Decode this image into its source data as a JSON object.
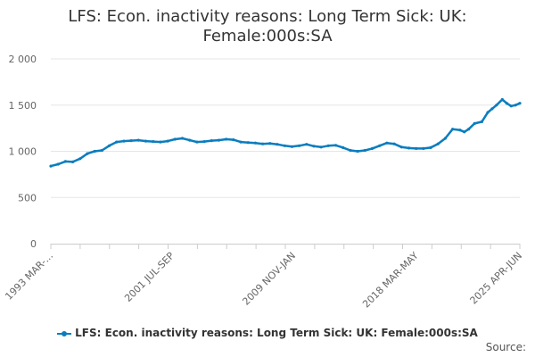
{
  "chart_data": {
    "type": "line",
    "title_lines": [
      "LFS: Econ. inactivity reasons: Long Term Sick: UK:",
      "Female:000s:SA"
    ],
    "xlabel": "",
    "ylabel": "",
    "ylim": [
      0,
      2000
    ],
    "yticks": [
      0,
      500,
      1000,
      1500,
      2000
    ],
    "ytick_labels": [
      "0",
      "500",
      "1 000",
      "1 500",
      "2 000"
    ],
    "x_labels": [
      "1993 MAR-MAY",
      "2001 JUL-SEP",
      "2009 NOV-JAN",
      "2018 MAR-MAY",
      "2025 APR-JUN"
    ],
    "x_labels_display": [
      "1993 MAR-...",
      "2001 JUL-SEP",
      "2009 NOV-JAN",
      "2018 MAR-MAY",
      "2025 APR-JUN"
    ],
    "x_label_years": [
      1993.3,
      2001.6,
      2009.9,
      2018.3,
      2025.4
    ],
    "xlim": [
      1993.3,
      2025.4
    ],
    "grid": "horizontal",
    "color": "#0a7dbf",
    "series": [
      {
        "name": "LFS: Econ. inactivity reasons: Long Term Sick: UK: Female:000s:SA",
        "x": [
          1993.3,
          1993.8,
          1994.3,
          1994.8,
          1995.3,
          1995.8,
          1996.3,
          1996.8,
          1997.3,
          1997.8,
          1998.3,
          1998.8,
          1999.3,
          1999.8,
          2000.3,
          2000.8,
          2001.3,
          2001.8,
          2002.3,
          2002.8,
          2003.3,
          2003.8,
          2004.3,
          2004.8,
          2005.3,
          2005.8,
          2006.3,
          2006.8,
          2007.3,
          2007.8,
          2008.3,
          2008.8,
          2009.3,
          2009.8,
          2010.3,
          2010.8,
          2011.3,
          2011.8,
          2012.3,
          2012.8,
          2013.3,
          2013.8,
          2014.3,
          2014.8,
          2015.3,
          2015.8,
          2016.3,
          2016.8,
          2017.3,
          2017.8,
          2018.3,
          2018.8,
          2019.3,
          2019.8,
          2020.3,
          2020.8,
          2021.3,
          2021.6,
          2021.9,
          2022.3,
          2022.8,
          2023.2,
          2023.5,
          2023.8,
          2024.2,
          2024.5,
          2024.8,
          2025.1,
          2025.4
        ],
        "values": [
          840,
          860,
          890,
          885,
          920,
          975,
          1000,
          1010,
          1060,
          1100,
          1110,
          1115,
          1120,
          1110,
          1105,
          1100,
          1110,
          1130,
          1140,
          1120,
          1100,
          1105,
          1115,
          1120,
          1130,
          1125,
          1100,
          1095,
          1090,
          1080,
          1085,
          1075,
          1060,
          1050,
          1060,
          1075,
          1055,
          1045,
          1060,
          1065,
          1040,
          1010,
          1000,
          1010,
          1030,
          1060,
          1090,
          1080,
          1045,
          1035,
          1030,
          1030,
          1040,
          1080,
          1140,
          1240,
          1230,
          1210,
          1240,
          1300,
          1320,
          1420,
          1460,
          1500,
          1560,
          1520,
          1490,
          1500,
          1520
        ]
      }
    ]
  },
  "legend": {
    "label": "LFS: Econ. inactivity reasons: Long Term Sick: UK: Female:000s:SA"
  },
  "source_label": "Source:"
}
